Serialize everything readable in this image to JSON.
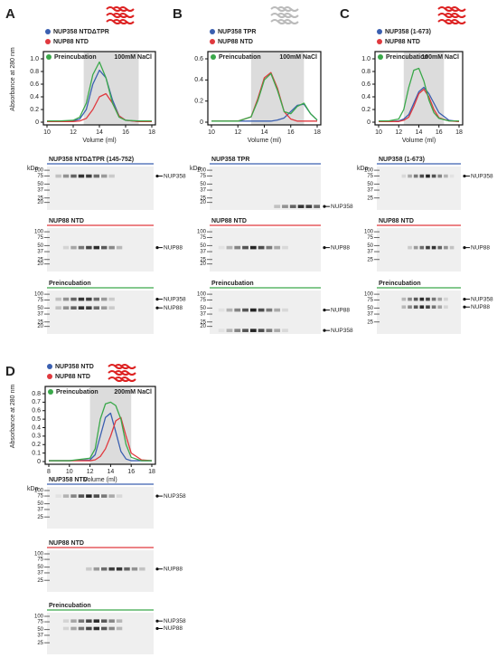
{
  "chart_data": [
    {
      "type": "line",
      "panel": "A",
      "ylabel": "Absorbance at 280 nm",
      "xlabel": "Volume (ml)",
      "annotation": "100mM NaCl",
      "x": [
        10,
        11,
        12,
        12.5,
        13,
        13.5,
        14,
        14.5,
        15,
        15.5,
        16,
        17,
        18
      ],
      "series": [
        {
          "name": "NUP358 NTDΔTPR",
          "color": "#3a5fb0",
          "values": [
            0.01,
            0.01,
            0.02,
            0.05,
            0.2,
            0.6,
            0.82,
            0.7,
            0.35,
            0.1,
            0.03,
            0.01,
            0.01
          ]
        },
        {
          "name": "NUP88 NTD",
          "color": "#e0393e",
          "values": [
            0.01,
            0.01,
            0.01,
            0.02,
            0.06,
            0.2,
            0.4,
            0.45,
            0.3,
            0.1,
            0.03,
            0.01,
            0.01
          ]
        },
        {
          "name": "Preincubation",
          "color": "#3aa84a",
          "values": [
            0.02,
            0.02,
            0.03,
            0.08,
            0.3,
            0.75,
            0.95,
            0.7,
            0.3,
            0.08,
            0.03,
            0.02,
            0.02
          ]
        }
      ],
      "xlim": [
        10,
        18
      ],
      "xticks": [
        10,
        12,
        14,
        16,
        18
      ],
      "ylim": [
        0,
        1
      ],
      "yticks": [
        0,
        0.2,
        0.4,
        0.6,
        0.8,
        {
          "value": 1,
          "label": "1.0"
        }
      ],
      "shade": [
        12.8,
        17
      ]
    },
    {
      "type": "line",
      "panel": "B",
      "xlabel": "Volume (ml)",
      "annotation": "100mM NaCl",
      "x": [
        10,
        12,
        13,
        13.5,
        14,
        14.5,
        15,
        15.5,
        16,
        16.5,
        17,
        17.5,
        18
      ],
      "series": [
        {
          "name": "NUP358 TPR",
          "color": "#3a5fb0",
          "values": [
            0.01,
            0.01,
            0.01,
            0.01,
            0.01,
            0.01,
            0.02,
            0.04,
            0.1,
            0.16,
            0.17,
            0.08,
            0.02
          ]
        },
        {
          "name": "NUP88 NTD",
          "color": "#e0393e",
          "values": [
            0.01,
            0.01,
            0.05,
            0.22,
            0.42,
            0.47,
            0.32,
            0.1,
            0.03,
            0.01,
            0.01,
            0.01,
            0.01
          ]
        },
        {
          "name": "Preincubation",
          "color": "#3aa84a",
          "values": [
            0.01,
            0.01,
            0.05,
            0.2,
            0.4,
            0.46,
            0.3,
            0.1,
            0.08,
            0.15,
            0.18,
            0.08,
            0.02
          ]
        }
      ],
      "xlim": [
        10,
        18
      ],
      "xticks": [
        10,
        12,
        14,
        16,
        18
      ],
      "ylim": [
        0,
        0.6
      ],
      "yticks": [
        0,
        0.2,
        0.4,
        0.6
      ],
      "shade": [
        13,
        17
      ]
    },
    {
      "type": "line",
      "panel": "C",
      "xlabel": "Volume (ml)",
      "annotation": "100mM NaCl",
      "x": [
        10,
        11,
        12,
        12.5,
        13,
        13.5,
        14,
        14.5,
        15,
        15.5,
        16,
        17,
        18
      ],
      "series": [
        {
          "name": "NUP358 (1-673)",
          "color": "#3a5fb0",
          "values": [
            0.01,
            0.01,
            0.02,
            0.05,
            0.12,
            0.3,
            0.48,
            0.55,
            0.45,
            0.3,
            0.15,
            0.03,
            0.01
          ]
        },
        {
          "name": "NUP88 NTD",
          "color": "#e0393e",
          "values": [
            0.01,
            0.01,
            0.01,
            0.03,
            0.08,
            0.25,
            0.45,
            0.52,
            0.4,
            0.2,
            0.07,
            0.02,
            0.01
          ]
        },
        {
          "name": "Preincubation",
          "color": "#3aa84a",
          "values": [
            0.02,
            0.02,
            0.05,
            0.2,
            0.55,
            0.82,
            0.85,
            0.65,
            0.35,
            0.15,
            0.06,
            0.02,
            0.02
          ]
        }
      ],
      "xlim": [
        10,
        18
      ],
      "xticks": [
        10,
        12,
        14,
        16,
        18
      ],
      "ylim": [
        0,
        1
      ],
      "yticks": [
        0,
        0.2,
        0.4,
        0.6,
        0.8,
        {
          "value": 1,
          "label": "1.0"
        }
      ],
      "shade": [
        12.5,
        16.5
      ]
    },
    {
      "type": "line",
      "panel": "D",
      "ylabel": "Absorbance at 280 nm",
      "xlabel": "Volume (ml)",
      "annotation": "200mM NaCl",
      "x": [
        8,
        10,
        12,
        12.5,
        13,
        13.5,
        14,
        14.5,
        15,
        15.5,
        16,
        17,
        18
      ],
      "series": [
        {
          "name": "NUP358 NTD",
          "color": "#3a5fb0",
          "values": [
            0.01,
            0.01,
            0.02,
            0.08,
            0.3,
            0.52,
            0.57,
            0.35,
            0.12,
            0.03,
            0.01,
            0.01,
            0.01
          ]
        },
        {
          "name": "NUP88 NTD",
          "color": "#e0393e",
          "values": [
            0.01,
            0.01,
            0.01,
            0.02,
            0.06,
            0.15,
            0.3,
            0.48,
            0.52,
            0.3,
            0.1,
            0.02,
            0.01
          ]
        },
        {
          "name": "Preincubation",
          "color": "#3aa84a",
          "values": [
            0.01,
            0.01,
            0.04,
            0.15,
            0.5,
            0.68,
            0.7,
            0.66,
            0.5,
            0.2,
            0.05,
            0.01,
            0.01
          ]
        }
      ],
      "xlim": [
        8,
        18
      ],
      "xticks": [
        8,
        10,
        12,
        14,
        16,
        18
      ],
      "ylim": [
        0,
        0.8
      ],
      "yticks": [
        0,
        0.1,
        0.2,
        0.3,
        0.4,
        0.5,
        0.6,
        0.7,
        0.8
      ],
      "shade": [
        12,
        16
      ]
    }
  ],
  "gels": [
    {
      "unit": "kDa",
      "blots": [
        {
          "title": "NUP358 NTDΔTPR (145-752)",
          "color": "#3a5fb0",
          "markers": [
            100,
            75,
            50,
            37,
            25,
            20
          ],
          "labels": [
            "NUP358"
          ]
        },
        {
          "title": "NUP88 NTD",
          "color": "#e0393e",
          "markers": [
            100,
            75,
            50,
            37,
            25,
            20
          ],
          "labels": [
            "NUP88"
          ]
        },
        {
          "title": "Preincubation",
          "color": "#3aa84a",
          "markers": [
            100,
            75,
            50,
            37,
            25,
            20
          ],
          "labels": [
            "NUP358",
            "NUP88"
          ]
        }
      ]
    },
    {
      "unit": "kDa",
      "blots": [
        {
          "title": "NUP358 TPR",
          "color": "#3a5fb0",
          "markers": [
            100,
            75,
            50,
            37,
            25,
            20
          ],
          "labels": [
            "NUP358"
          ]
        },
        {
          "title": "NUP88 NTD",
          "color": "#e0393e",
          "markers": [
            100,
            75,
            50,
            37,
            25,
            20
          ],
          "labels": [
            "NUP88"
          ]
        },
        {
          "title": "Preincubation",
          "color": "#3aa84a",
          "markers": [
            100,
            75,
            50,
            37,
            25,
            20
          ],
          "labels": [
            "NUP88",
            "NUP358"
          ]
        }
      ]
    },
    {
      "unit": "kDa",
      "blots": [
        {
          "title": "NUP358 (1-673)",
          "color": "#3a5fb0",
          "markers": [
            100,
            75,
            50,
            37,
            25
          ],
          "labels": [
            "NUP358"
          ]
        },
        {
          "title": "NUP88 NTD",
          "color": "#e0393e",
          "markers": [
            100,
            75,
            50,
            37,
            25
          ],
          "labels": [
            "NUP88"
          ]
        },
        {
          "title": "Preincubation",
          "color": "#3aa84a",
          "markers": [
            100,
            75,
            50,
            37,
            25
          ],
          "labels": [
            "NUP358",
            "NUP88"
          ]
        }
      ]
    },
    {
      "unit": "kDa",
      "blots": [
        {
          "title": "NUP358 NTD",
          "color": "#3a5fb0",
          "markers": [
            100,
            75,
            50,
            37,
            25
          ],
          "labels": [
            "NUP358"
          ]
        },
        {
          "title": "NUP88 NTD",
          "color": "#e0393e",
          "markers": [
            100,
            75,
            50,
            37,
            25
          ],
          "labels": [
            "NUP88"
          ]
        },
        {
          "title": "Preincubation",
          "color": "#3aa84a",
          "markers": [
            100,
            75,
            50,
            37,
            25
          ],
          "labels": [
            "NUP358",
            "NUP88"
          ]
        }
      ]
    }
  ]
}
